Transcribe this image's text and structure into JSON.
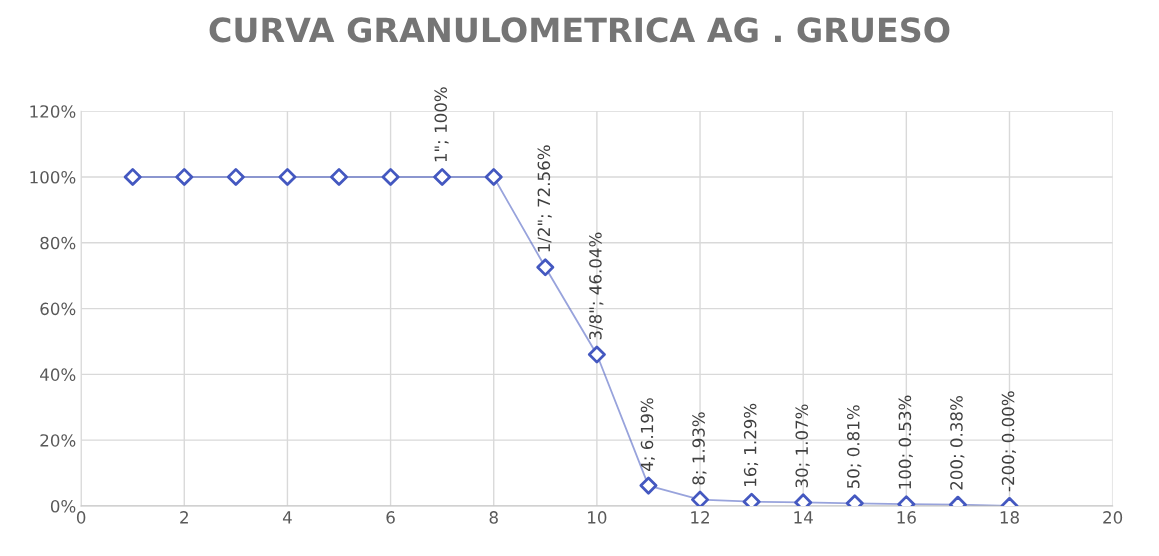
{
  "chart_data": {
    "type": "line",
    "title": "CURVA GRANULOMETRICA AG . GRUESO",
    "x": [
      1,
      2,
      3,
      4,
      5,
      6,
      7,
      8,
      9,
      10,
      11,
      12,
      13,
      14,
      15,
      16,
      17,
      18
    ],
    "series": [
      {
        "color": "#4458c0",
        "values": [
          100,
          100,
          100,
          100,
          100,
          100,
          100,
          100,
          72.56,
          46.04,
          6.19,
          1.93,
          1.29,
          1.07,
          0.81,
          0.53,
          0.38,
          0.0
        ],
        "value_labels": [
          null,
          null,
          null,
          null,
          null,
          null,
          "1\"; 100%",
          null,
          "1/2\"; 72.56%",
          "3/8\"; 46.04%",
          "4; 6.19%",
          "8; 1.93%",
          "16; 1.29%",
          "30; 1.07%",
          "50; 0.81%",
          "100; 0.53%",
          "200; 0.38%",
          "-200; 0.00%"
        ]
      }
    ],
    "xlim": [
      0,
      20
    ],
    "xticks": [
      0,
      2,
      4,
      6,
      8,
      10,
      12,
      14,
      16,
      18,
      20
    ],
    "ylim": [
      0,
      120
    ],
    "yticks": [
      {
        "value": 0,
        "label": "0%"
      },
      {
        "value": 20,
        "label": "20%"
      },
      {
        "value": 40,
        "label": "40%"
      },
      {
        "value": 60,
        "label": "60%"
      },
      {
        "value": 80,
        "label": "80%"
      },
      {
        "value": 100,
        "label": "100%"
      },
      {
        "value": 120,
        "label": "120%"
      }
    ],
    "grid": true,
    "marker": "diamond",
    "line_style": "solid",
    "legend": false
  }
}
